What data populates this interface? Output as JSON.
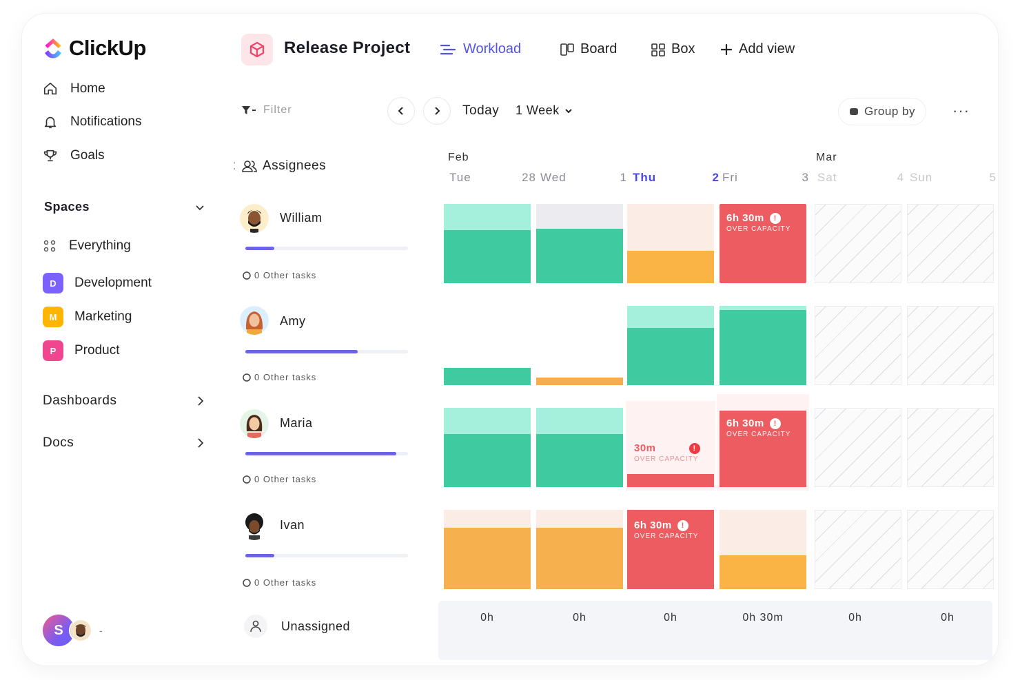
{
  "app": {
    "brand": "ClickUp"
  },
  "sidebar": {
    "nav": [
      {
        "label": "Home",
        "icon": "home-icon"
      },
      {
        "label": "Notifications",
        "icon": "bell-icon"
      },
      {
        "label": "Goals",
        "icon": "trophy-icon"
      }
    ],
    "spaces_label": "Spaces",
    "everything_label": "Everything",
    "spaces": [
      {
        "label": "Development",
        "badge": "D",
        "color": "#7b61ff"
      },
      {
        "label": "Marketing",
        "badge": "M",
        "color": "#ffb400"
      },
      {
        "label": "Product",
        "badge": "P",
        "color": "#f0468f"
      }
    ],
    "dashboards_label": "Dashboards",
    "docs_label": "Docs",
    "user_initial": "S"
  },
  "header": {
    "project_title": "Release Project",
    "views": [
      {
        "label": "Workload",
        "active": true
      },
      {
        "label": "Board",
        "active": false
      },
      {
        "label": "Box",
        "active": false
      },
      {
        "label": "Add view",
        "active": false
      }
    ]
  },
  "toolbar": {
    "filter_label": "Filter",
    "today_label": "Today",
    "range_label": "1 Week",
    "group_by_label": "Group by",
    "more_label": "···"
  },
  "assignees_label": "Assignees",
  "calendar": {
    "months": [
      "Feb",
      "Mar"
    ],
    "days": [
      {
        "name": "Tue",
        "num": "28"
      },
      {
        "name": "Wed",
        "num": "1"
      },
      {
        "name": "Thu",
        "num": "2"
      },
      {
        "name": "Fri",
        "num": "3"
      },
      {
        "name": "Sat",
        "num": "4"
      },
      {
        "name": "Sun",
        "num": "5"
      }
    ],
    "today_index": 2
  },
  "people": [
    {
      "name": "William",
      "workload_fraction": 0.18,
      "other_tasks": "0 Other tasks"
    },
    {
      "name": "Amy",
      "workload_fraction": 0.69,
      "other_tasks": "0 Other tasks"
    },
    {
      "name": "Maria",
      "workload_fraction": 0.93,
      "other_tasks": "0 Other tasks"
    },
    {
      "name": "Ivan",
      "workload_fraction": 0.18,
      "other_tasks": "0 Other tasks"
    }
  ],
  "over_capacity": {
    "label": "OVER CAPACITY",
    "william_fri": "6h 30m",
    "maria_thu": "30m",
    "maria_fri": "6h 30m",
    "ivan_thu": "6h 30m"
  },
  "unassigned_label": "Unassigned",
  "totals": [
    "0h",
    "0h",
    "0h",
    "0h 30m",
    "0h",
    "0h"
  ],
  "colors": {
    "accent": "#5352e8",
    "capacity_ok": "#3fcaa0",
    "capacity_partial": "#f9b445",
    "capacity_over": "#ed5c60"
  }
}
